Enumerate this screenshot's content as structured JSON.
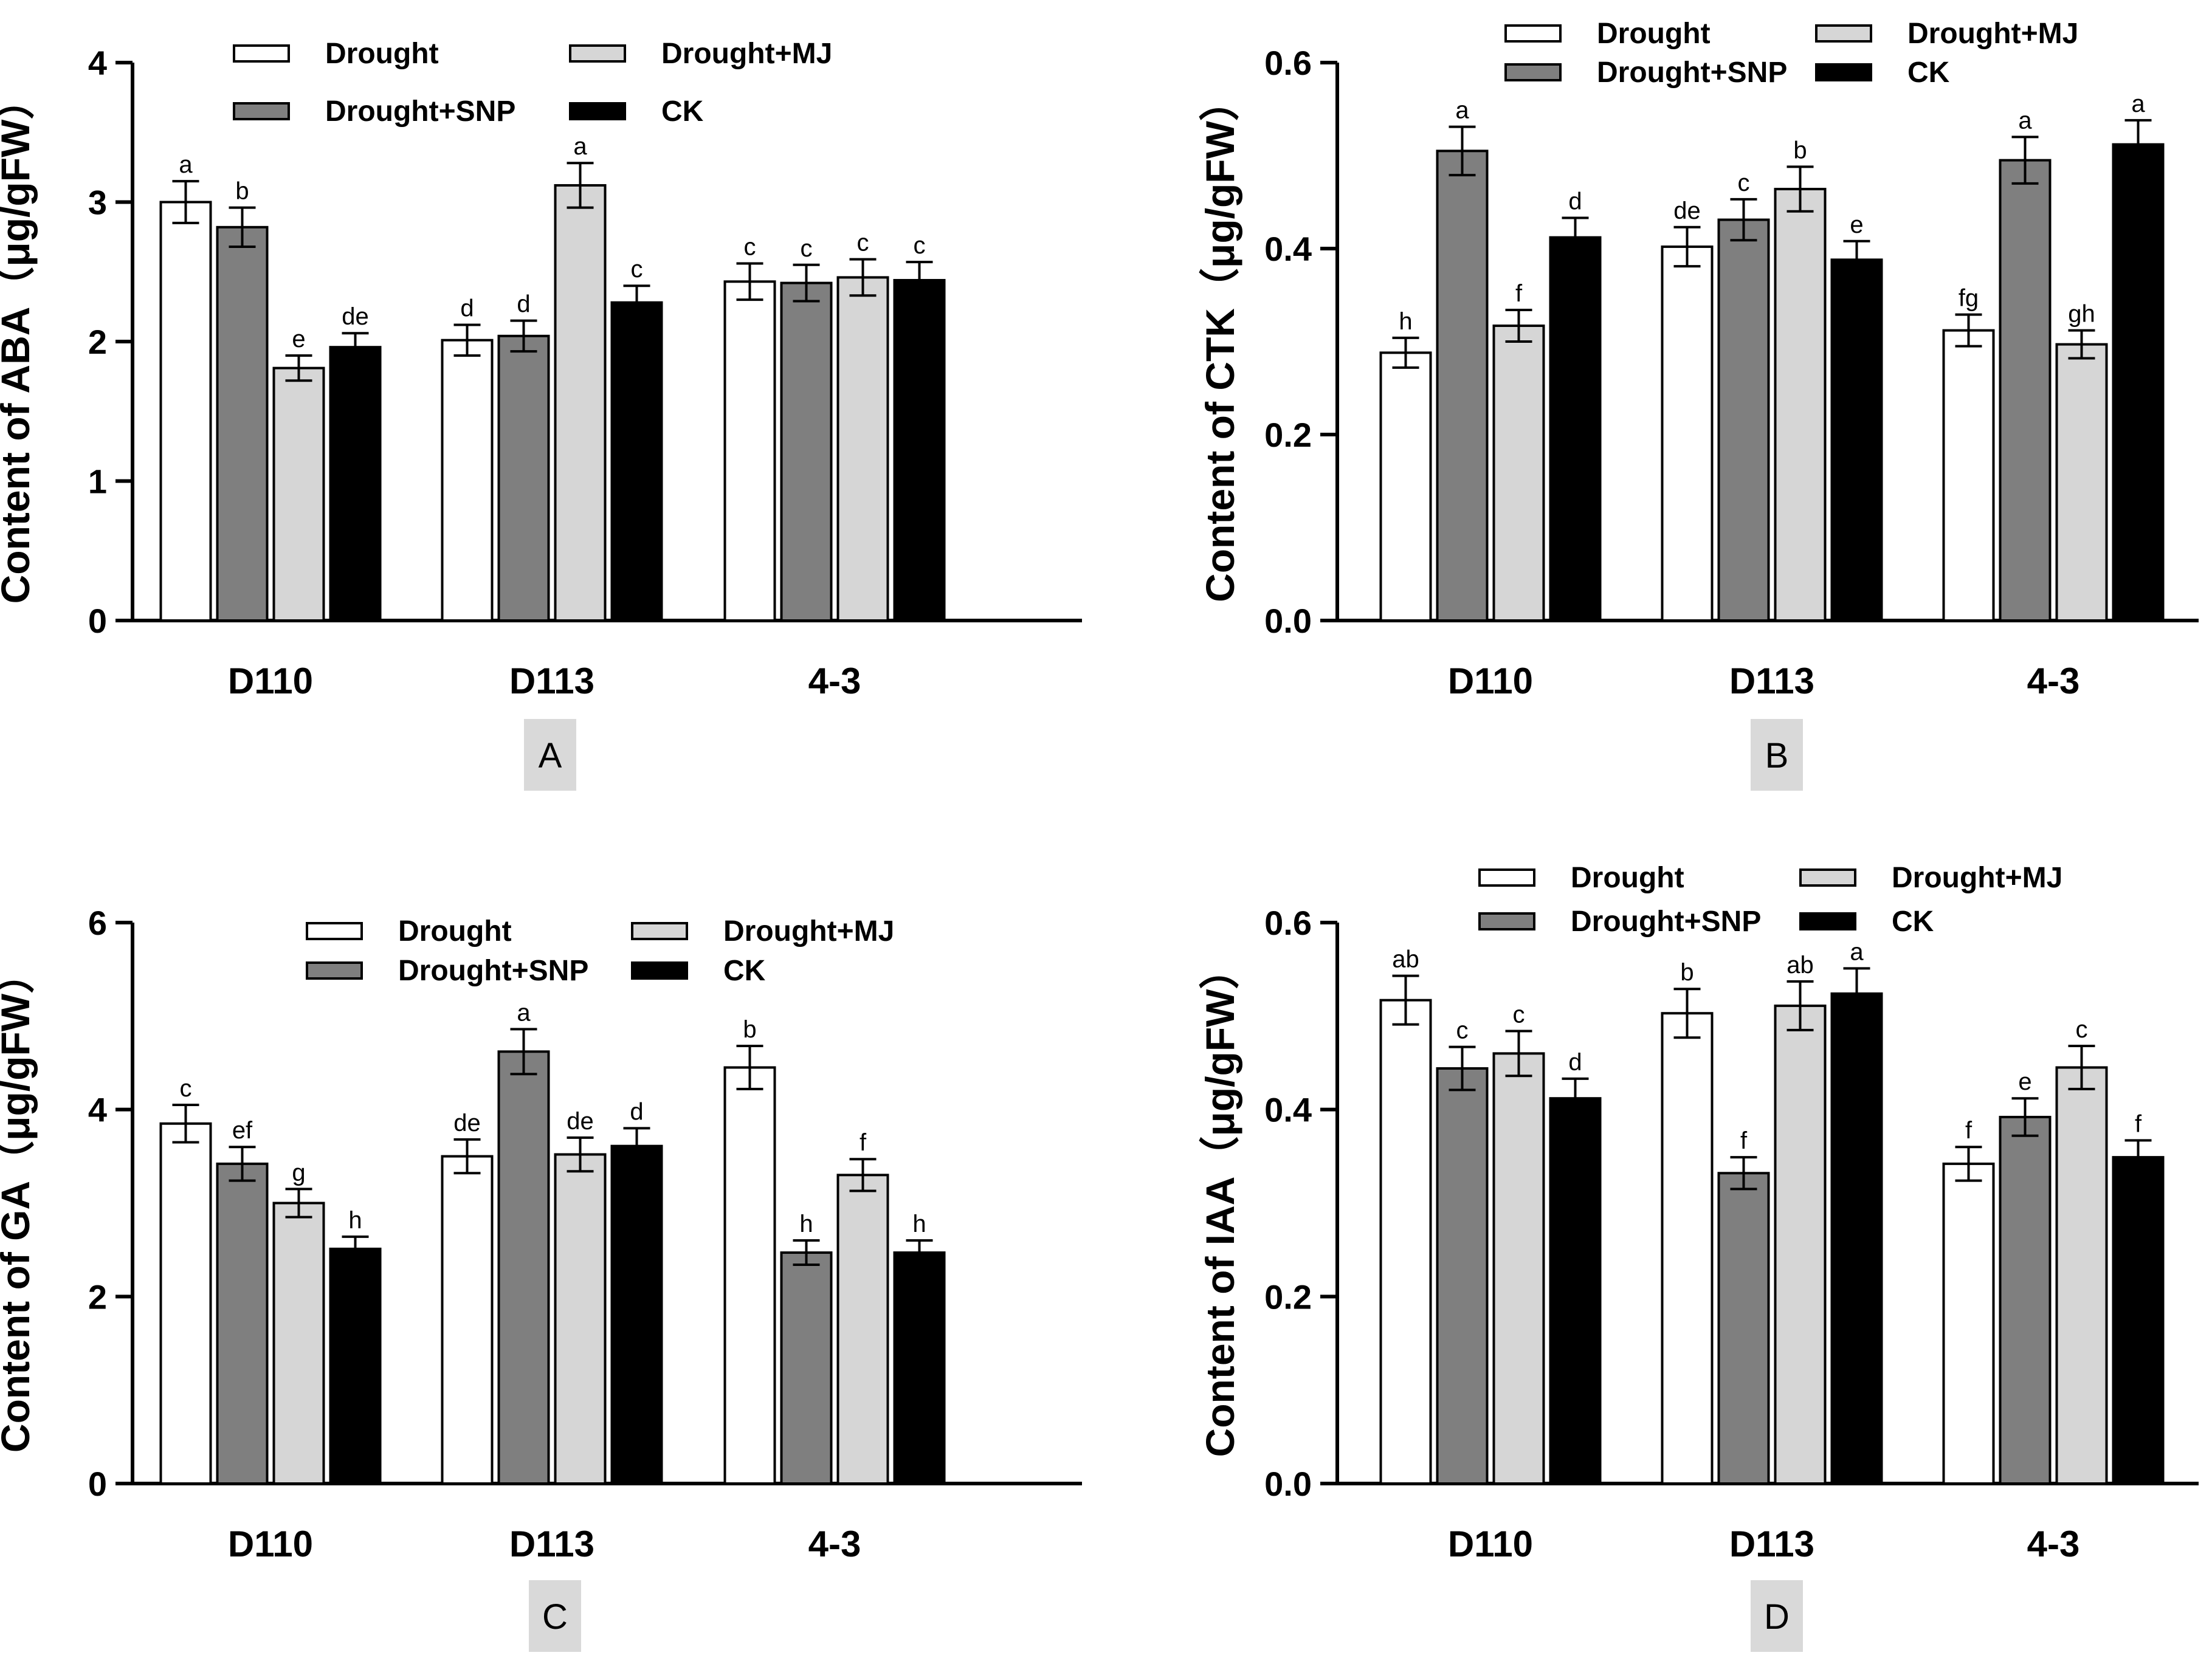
{
  "chart_data": [
    {
      "panel": "A",
      "type": "bar",
      "ylabel": "Content of ABA（μg/gFW）",
      "ylim": [
        0,
        4
      ],
      "yticks": [
        "0",
        "1",
        "2",
        "3",
        "4"
      ],
      "categories": [
        "D110",
        "D113",
        "4-3"
      ],
      "legend": [
        "Drought",
        "Drought+MJ",
        "Drought+SNP",
        "CK"
      ],
      "series": [
        {
          "name": "Drought",
          "color": "#ffffff",
          "values": [
            3.0,
            2.01,
            2.43
          ],
          "errors": [
            0.15,
            0.11,
            0.13
          ],
          "letters": [
            "a",
            "d",
            "c"
          ]
        },
        {
          "name": "Drought+SNP",
          "color": "#7f7f7f",
          "values": [
            2.82,
            2.04,
            2.42
          ],
          "errors": [
            0.14,
            0.11,
            0.13
          ],
          "letters": [
            "b",
            "d",
            "c"
          ]
        },
        {
          "name": "Drought+MJ",
          "color": "#d6d6d6",
          "values": [
            1.81,
            3.12,
            2.46
          ],
          "errors": [
            0.09,
            0.16,
            0.13
          ],
          "letters": [
            "e",
            "a",
            "c"
          ]
        },
        {
          "name": "CK",
          "color": "#000000",
          "values": [
            1.96,
            2.28,
            2.44
          ],
          "errors": [
            0.1,
            0.12,
            0.13
          ],
          "letters": [
            "de",
            "c",
            "c"
          ]
        }
      ]
    },
    {
      "panel": "B",
      "type": "bar",
      "ylabel": "Content of CTK（μg/gFW）",
      "ylim": [
        0,
        0.6
      ],
      "yticks": [
        "0.0",
        "0.2",
        "0.4",
        "0.6"
      ],
      "categories": [
        "D110",
        "D113",
        "4-3"
      ],
      "legend": [
        "Drought",
        "Drought+MJ",
        "Drought+SNP",
        "CK"
      ],
      "series": [
        {
          "name": "Drought",
          "color": "#ffffff",
          "values": [
            0.288,
            0.402,
            0.312
          ],
          "errors": [
            0.016,
            0.021,
            0.017
          ],
          "letters": [
            "h",
            "de",
            "fg"
          ]
        },
        {
          "name": "Drought+SNP",
          "color": "#7f7f7f",
          "values": [
            0.505,
            0.431,
            0.495
          ],
          "errors": [
            0.026,
            0.022,
            0.025
          ],
          "letters": [
            "a",
            "c",
            "a"
          ]
        },
        {
          "name": "Drought+MJ",
          "color": "#d6d6d6",
          "values": [
            0.317,
            0.464,
            0.297
          ],
          "errors": [
            0.017,
            0.024,
            0.015
          ],
          "letters": [
            "f",
            "b",
            "gh"
          ]
        },
        {
          "name": "CK",
          "color": "#000000",
          "values": [
            0.412,
            0.388,
            0.512
          ],
          "errors": [
            0.021,
            0.02,
            0.026
          ],
          "letters": [
            "d",
            "e",
            "a"
          ]
        }
      ]
    },
    {
      "panel": "C",
      "type": "bar",
      "ylabel": "Content of GA（μg/gFW）",
      "ylim": [
        0,
        6
      ],
      "yticks": [
        "0",
        "2",
        "4",
        "6"
      ],
      "categories": [
        "D110",
        "D113",
        "4-3"
      ],
      "legend": [
        "Drought",
        "Drought+MJ",
        "Drought+SNP",
        "CK"
      ],
      "series": [
        {
          "name": "Drought",
          "color": "#ffffff",
          "values": [
            3.85,
            3.5,
            4.45
          ],
          "errors": [
            0.2,
            0.18,
            0.23
          ],
          "letters": [
            "c",
            "de",
            "b"
          ]
        },
        {
          "name": "Drought+SNP",
          "color": "#7f7f7f",
          "values": [
            3.42,
            4.62,
            2.47
          ],
          "errors": [
            0.18,
            0.24,
            0.13
          ],
          "letters": [
            "ef",
            "a",
            "h"
          ]
        },
        {
          "name": "Drought+MJ",
          "color": "#d6d6d6",
          "values": [
            3.0,
            3.52,
            3.3
          ],
          "errors": [
            0.15,
            0.18,
            0.17
          ],
          "letters": [
            "g",
            "de",
            "f"
          ]
        },
        {
          "name": "CK",
          "color": "#000000",
          "values": [
            2.51,
            3.61,
            2.47
          ],
          "errors": [
            0.13,
            0.19,
            0.13
          ],
          "letters": [
            "h",
            "d",
            "h"
          ]
        }
      ]
    },
    {
      "panel": "D",
      "type": "bar",
      "ylabel": "Content of IAA（μg/gFW）",
      "ylim": [
        0,
        0.6
      ],
      "yticks": [
        "0.0",
        "0.2",
        "0.4",
        "0.6"
      ],
      "categories": [
        "D110",
        "D113",
        "4-3"
      ],
      "legend": [
        "Drought",
        "Drought+MJ",
        "Drought+SNP",
        "CK"
      ],
      "series": [
        {
          "name": "Drought",
          "color": "#ffffff",
          "values": [
            0.517,
            0.503,
            0.342
          ],
          "errors": [
            0.026,
            0.026,
            0.018
          ],
          "letters": [
            "ab",
            "b",
            "f"
          ]
        },
        {
          "name": "Drought+SNP",
          "color": "#7f7f7f",
          "values": [
            0.444,
            0.332,
            0.392
          ],
          "errors": [
            0.023,
            0.017,
            0.02
          ],
          "letters": [
            "c",
            "f",
            "e"
          ]
        },
        {
          "name": "Drought+MJ",
          "color": "#d6d6d6",
          "values": [
            0.46,
            0.511,
            0.445
          ],
          "errors": [
            0.024,
            0.026,
            0.023
          ],
          "letters": [
            "c",
            "ab",
            "c"
          ]
        },
        {
          "name": "CK",
          "color": "#000000",
          "values": [
            0.412,
            0.524,
            0.349
          ],
          "errors": [
            0.021,
            0.027,
            0.018
          ],
          "letters": [
            "d",
            "a",
            "f"
          ]
        }
      ]
    }
  ]
}
